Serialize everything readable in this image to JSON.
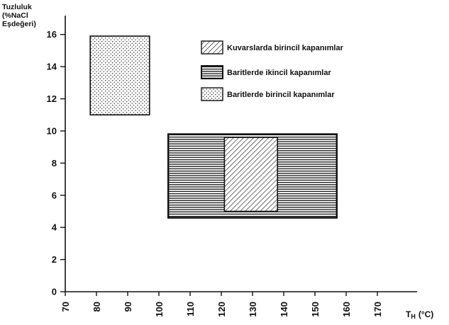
{
  "chart_data": {
    "type": "range-boxes",
    "ylabel_lines": [
      "Tuzluluk",
      "(%NaCl",
      "Eşdeğeri)"
    ],
    "xlabel": "TH (°C)",
    "xlabel_parts": {
      "main": "T",
      "sub": "H",
      "unit": "(°C)"
    },
    "xlim": [
      70,
      180
    ],
    "ylim": [
      0,
      17
    ],
    "xticks": [
      70,
      80,
      90,
      100,
      110,
      120,
      130,
      140,
      150,
      160,
      170
    ],
    "yticks": [
      0,
      2,
      4,
      6,
      8,
      10,
      12,
      14,
      16
    ],
    "grid": false,
    "legend_position": "top-right",
    "series": [
      {
        "name": "Baritlerde ikincil kapanımlar",
        "pattern": "horizontal-lines",
        "x": [
          103,
          157
        ],
        "y": [
          4.6,
          9.8
        ]
      },
      {
        "name": "Kuvarslarda birincil kapanımlar",
        "pattern": "diagonal-lines",
        "x": [
          121,
          138
        ],
        "y": [
          5.0,
          9.6
        ]
      },
      {
        "name": "Baritlerde birincil kapanımlar",
        "pattern": "dots",
        "x": [
          78,
          97
        ],
        "y": [
          11.0,
          15.9
        ]
      }
    ],
    "legend_order": [
      1,
      0,
      2
    ]
  }
}
